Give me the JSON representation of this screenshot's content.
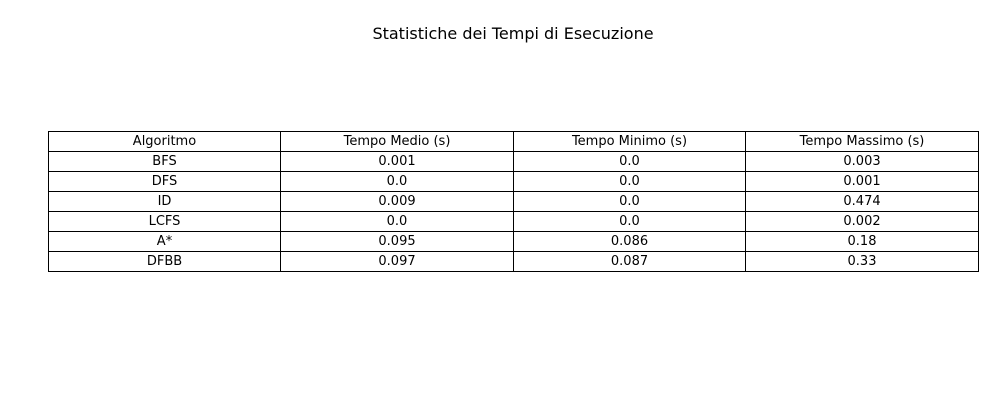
{
  "chart_data": {
    "type": "table",
    "title": "Statistiche dei Tempi di Esecuzione",
    "columns": [
      "Algoritmo",
      "Tempo Medio (s)",
      "Tempo Minimo (s)",
      "Tempo Massimo (s)"
    ],
    "rows": [
      [
        "BFS",
        "0.001",
        "0.0",
        "0.003"
      ],
      [
        "DFS",
        "0.0",
        "0.0",
        "0.001"
      ],
      [
        "ID",
        "0.009",
        "0.0",
        "0.474"
      ],
      [
        "LCFS",
        "0.0",
        "0.0",
        "0.002"
      ],
      [
        "A*",
        "0.095",
        "0.086",
        "0.18"
      ],
      [
        "DFBB",
        "0.097",
        "0.087",
        "0.33"
      ]
    ]
  }
}
